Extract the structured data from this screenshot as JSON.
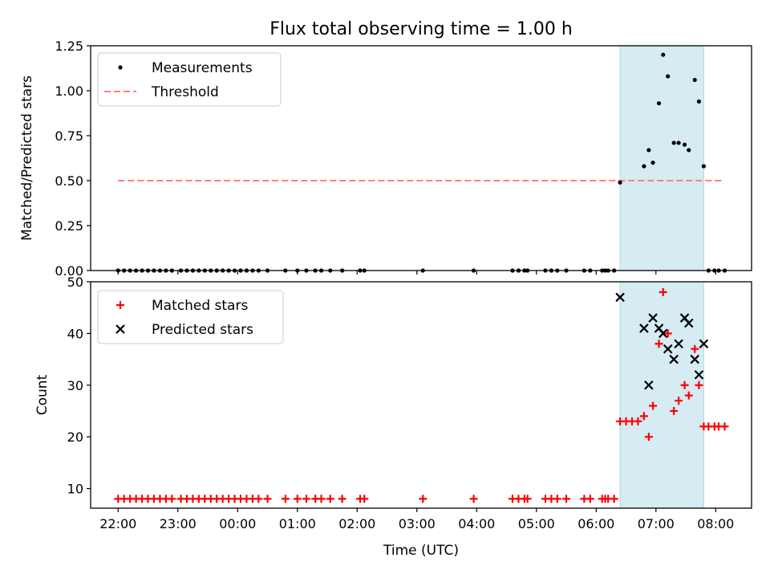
{
  "title": "Flux total observing time = 1.00 h",
  "xlabel": "Time (UTC)",
  "x_tick_labels": [
    "22:00",
    "23:00",
    "00:00",
    "01:00",
    "02:00",
    "03:00",
    "04:00",
    "05:00",
    "06:00",
    "07:00",
    "08:00"
  ],
  "colors": {
    "measurements": "#000000",
    "threshold": "#ff7f7f",
    "matched": "#ff0000",
    "predicted": "#000000",
    "highlight": "#add8e6"
  },
  "chart_data": [
    {
      "type": "scatter",
      "panel": "top",
      "ylabel": "Matched/Predicted stars",
      "ylim": [
        0,
        1.25
      ],
      "y_ticks": [
        "0.00",
        "0.25",
        "0.50",
        "0.75",
        "1.00",
        "1.25"
      ],
      "xlim": [
        21.54,
        32.6
      ],
      "x_unit": "hours UTC (values above 24 are after midnight)",
      "legend": {
        "placement": "top-left",
        "entries": [
          "Measurements",
          "Threshold"
        ]
      },
      "highlight_span": [
        30.4,
        31.8
      ],
      "threshold": {
        "value": 0.5,
        "x": [
          22.0,
          32.15
        ]
      },
      "series": [
        {
          "name": "Measurements",
          "points": [
            [
              22.0,
              0
            ],
            [
              22.1,
              0
            ],
            [
              22.2,
              0
            ],
            [
              22.3,
              0
            ],
            [
              22.4,
              0
            ],
            [
              22.5,
              0
            ],
            [
              22.6,
              0
            ],
            [
              22.7,
              0
            ],
            [
              22.8,
              0
            ],
            [
              22.9,
              0
            ],
            [
              23.05,
              0
            ],
            [
              23.15,
              0
            ],
            [
              23.25,
              0
            ],
            [
              23.35,
              0
            ],
            [
              23.45,
              0
            ],
            [
              23.55,
              0
            ],
            [
              23.65,
              0
            ],
            [
              23.75,
              0
            ],
            [
              23.85,
              0
            ],
            [
              23.95,
              0
            ],
            [
              24.05,
              0
            ],
            [
              24.15,
              0
            ],
            [
              24.25,
              0
            ],
            [
              24.35,
              0
            ],
            [
              24.5,
              0
            ],
            [
              24.8,
              0
            ],
            [
              25.0,
              0
            ],
            [
              25.15,
              0
            ],
            [
              25.3,
              0
            ],
            [
              25.4,
              0
            ],
            [
              25.55,
              0
            ],
            [
              25.75,
              0
            ],
            [
              26.05,
              0
            ],
            [
              26.12,
              0
            ],
            [
              27.1,
              0
            ],
            [
              27.95,
              0
            ],
            [
              28.6,
              0
            ],
            [
              28.7,
              0
            ],
            [
              28.8,
              0
            ],
            [
              28.85,
              0
            ],
            [
              29.15,
              0
            ],
            [
              29.25,
              0
            ],
            [
              29.35,
              0
            ],
            [
              29.5,
              0
            ],
            [
              29.8,
              0
            ],
            [
              29.9,
              0
            ],
            [
              30.1,
              0
            ],
            [
              30.15,
              0
            ],
            [
              30.2,
              0
            ],
            [
              30.3,
              0
            ],
            [
              30.4,
              0.49
            ],
            [
              30.8,
              0.58
            ],
            [
              30.88,
              0.67
            ],
            [
              30.95,
              0.6
            ],
            [
              31.05,
              0.93
            ],
            [
              31.12,
              1.2
            ],
            [
              31.2,
              1.08
            ],
            [
              31.3,
              0.71
            ],
            [
              31.38,
              0.71
            ],
            [
              31.48,
              0.7
            ],
            [
              31.55,
              0.67
            ],
            [
              31.65,
              1.06
            ],
            [
              31.72,
              0.94
            ],
            [
              31.8,
              0.58
            ],
            [
              31.88,
              0
            ],
            [
              31.98,
              0
            ],
            [
              32.05,
              0
            ],
            [
              32.15,
              0
            ]
          ]
        }
      ]
    },
    {
      "type": "scatter",
      "panel": "bottom",
      "ylabel": "Count",
      "ylim": [
        6.2,
        50
      ],
      "y_ticks": [
        "10",
        "20",
        "30",
        "40",
        "50"
      ],
      "xlim": [
        21.54,
        32.6
      ],
      "legend": {
        "placement": "top-left",
        "entries": [
          "Matched stars",
          "Predicted stars"
        ]
      },
      "highlight_span": [
        30.4,
        31.8
      ],
      "series": [
        {
          "name": "Matched stars",
          "marker": "+",
          "points": [
            [
              22.0,
              8
            ],
            [
              22.1,
              8
            ],
            [
              22.2,
              8
            ],
            [
              22.3,
              8
            ],
            [
              22.4,
              8
            ],
            [
              22.5,
              8
            ],
            [
              22.6,
              8
            ],
            [
              22.7,
              8
            ],
            [
              22.8,
              8
            ],
            [
              22.9,
              8
            ],
            [
              23.05,
              8
            ],
            [
              23.15,
              8
            ],
            [
              23.25,
              8
            ],
            [
              23.35,
              8
            ],
            [
              23.45,
              8
            ],
            [
              23.55,
              8
            ],
            [
              23.65,
              8
            ],
            [
              23.75,
              8
            ],
            [
              23.85,
              8
            ],
            [
              23.95,
              8
            ],
            [
              24.05,
              8
            ],
            [
              24.15,
              8
            ],
            [
              24.25,
              8
            ],
            [
              24.35,
              8
            ],
            [
              24.5,
              8
            ],
            [
              24.8,
              8
            ],
            [
              25.0,
              8
            ],
            [
              25.15,
              8
            ],
            [
              25.3,
              8
            ],
            [
              25.4,
              8
            ],
            [
              25.55,
              8
            ],
            [
              25.75,
              8
            ],
            [
              26.05,
              8
            ],
            [
              26.12,
              8
            ],
            [
              27.1,
              8
            ],
            [
              27.95,
              8
            ],
            [
              28.6,
              8
            ],
            [
              28.7,
              8
            ],
            [
              28.8,
              8
            ],
            [
              28.85,
              8
            ],
            [
              29.15,
              8
            ],
            [
              29.25,
              8
            ],
            [
              29.35,
              8
            ],
            [
              29.5,
              8
            ],
            [
              29.8,
              8
            ],
            [
              29.9,
              8
            ],
            [
              30.1,
              8
            ],
            [
              30.15,
              8
            ],
            [
              30.2,
              8
            ],
            [
              30.3,
              8
            ],
            [
              30.4,
              23
            ],
            [
              30.5,
              23
            ],
            [
              30.6,
              23
            ],
            [
              30.7,
              23
            ],
            [
              30.8,
              24
            ],
            [
              30.88,
              20
            ],
            [
              30.95,
              26
            ],
            [
              31.05,
              38
            ],
            [
              31.12,
              48
            ],
            [
              31.2,
              40
            ],
            [
              31.3,
              25
            ],
            [
              31.38,
              27
            ],
            [
              31.48,
              30
            ],
            [
              31.55,
              28
            ],
            [
              31.65,
              37
            ],
            [
              31.72,
              30
            ],
            [
              31.8,
              22
            ],
            [
              31.88,
              22
            ],
            [
              31.98,
              22
            ],
            [
              32.05,
              22
            ],
            [
              32.15,
              22
            ]
          ]
        },
        {
          "name": "Predicted stars",
          "marker": "x",
          "points": [
            [
              30.4,
              47
            ],
            [
              30.8,
              41
            ],
            [
              30.88,
              30
            ],
            [
              30.95,
              43
            ],
            [
              31.05,
              41
            ],
            [
              31.12,
              40
            ],
            [
              31.2,
              37
            ],
            [
              31.3,
              35
            ],
            [
              31.38,
              38
            ],
            [
              31.48,
              43
            ],
            [
              31.55,
              42
            ],
            [
              31.65,
              35
            ],
            [
              31.72,
              32
            ],
            [
              31.8,
              38
            ]
          ]
        }
      ]
    }
  ]
}
